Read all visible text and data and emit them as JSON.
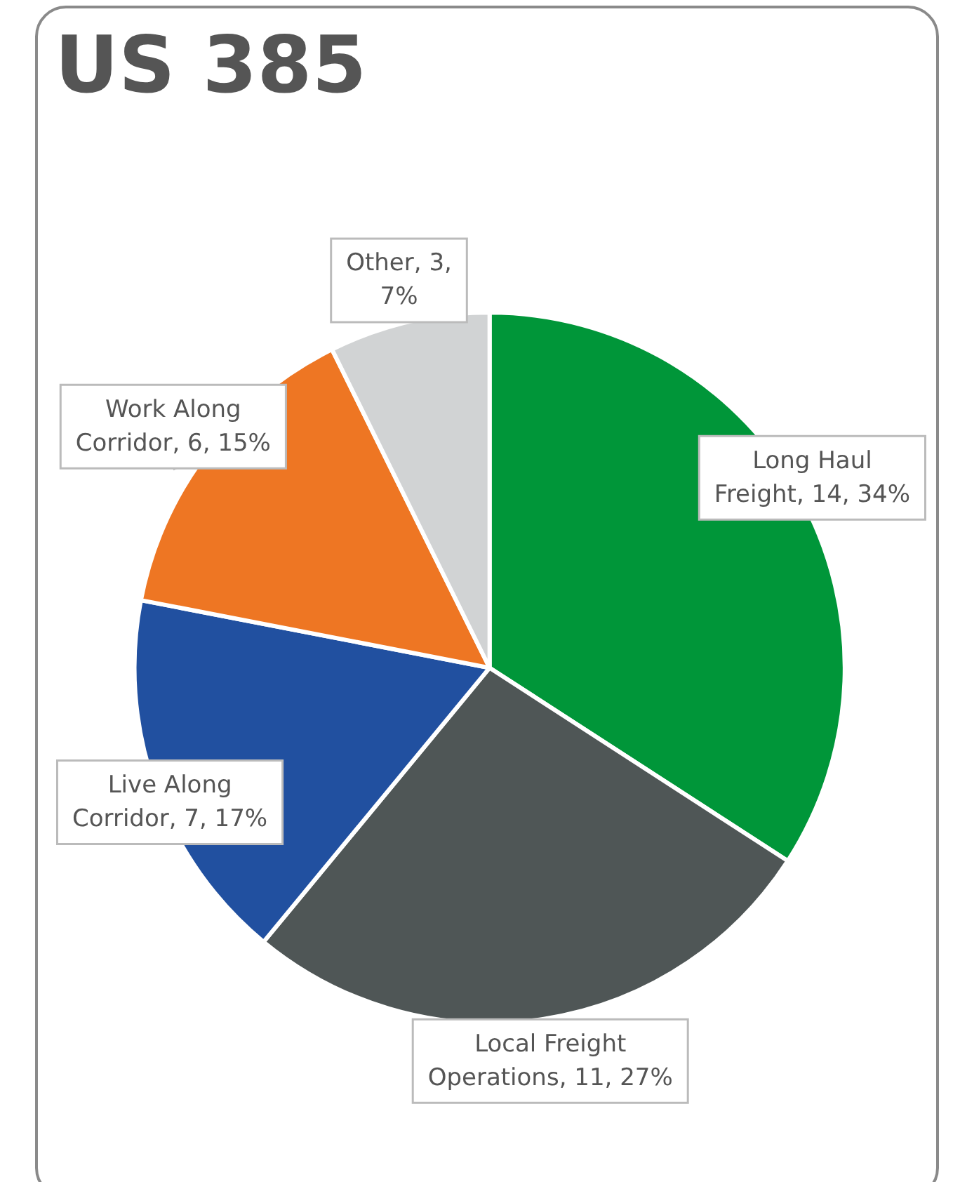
{
  "chart_data": {
    "type": "pie",
    "title": "US 385",
    "categories": [
      "Long Haul Freight",
      "Local Freight Operations",
      "Live Along Corridor",
      "Work Along Corridor",
      "Other"
    ],
    "values": [
      14,
      11,
      7,
      6,
      3
    ],
    "value_labels": [
      "14, 34%",
      "11, 27%",
      "7, 17%",
      "6, 15%",
      "3, 7%"
    ],
    "colors": [
      "#009639",
      "#4f5656",
      "#2150a0",
      "#ee7623",
      "#d1d3d4"
    ],
    "legend": false
  }
}
